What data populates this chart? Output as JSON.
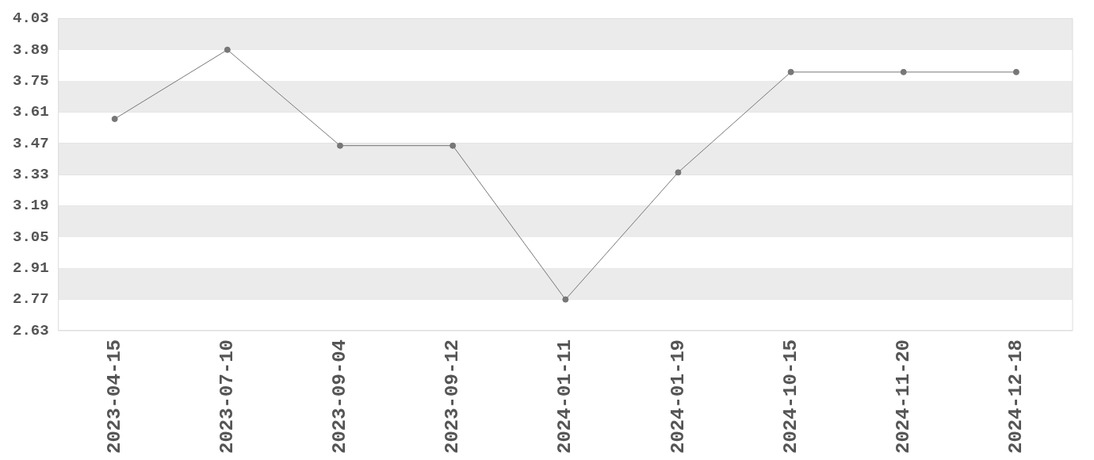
{
  "chart_data": {
    "type": "line",
    "categories": [
      "2023-04-15",
      "2023-07-10",
      "2023-09-04",
      "2023-09-12",
      "2024-01-11",
      "2024-01-19",
      "2024-10-15",
      "2024-11-20",
      "2024-12-18"
    ],
    "series": [
      {
        "color": "#777777",
        "values": [
          3.58,
          3.89,
          3.46,
          3.46,
          2.77,
          3.34,
          3.79,
          3.79,
          3.79
        ]
      }
    ],
    "ylim": [
      2.63,
      4.03
    ],
    "yticks": [
      2.63,
      2.77,
      2.91,
      3.05,
      3.19,
      3.33,
      3.47,
      3.61,
      3.75,
      3.89,
      4.03
    ],
    "grid": true,
    "legend": false,
    "marker": "circle",
    "line_style": "solid"
  }
}
